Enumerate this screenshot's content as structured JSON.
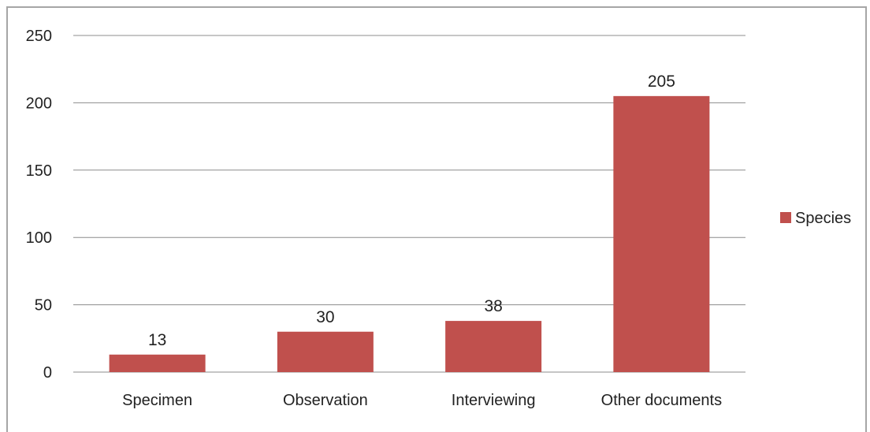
{
  "chart_data": {
    "type": "bar",
    "categories": [
      "Specimen",
      "Observation",
      "Interviewing",
      "Other documents"
    ],
    "series": [
      {
        "name": "Species",
        "values": [
          13,
          30,
          38,
          205
        ],
        "color": "#c0504d"
      }
    ],
    "data_labels": [
      "13",
      "30",
      "38",
      "205"
    ],
    "ylim": [
      0,
      250
    ],
    "yticks": [
      0,
      50,
      100,
      150,
      200,
      250
    ],
    "grid": true,
    "legend_position": "right",
    "legend": {
      "label": "Species"
    }
  }
}
